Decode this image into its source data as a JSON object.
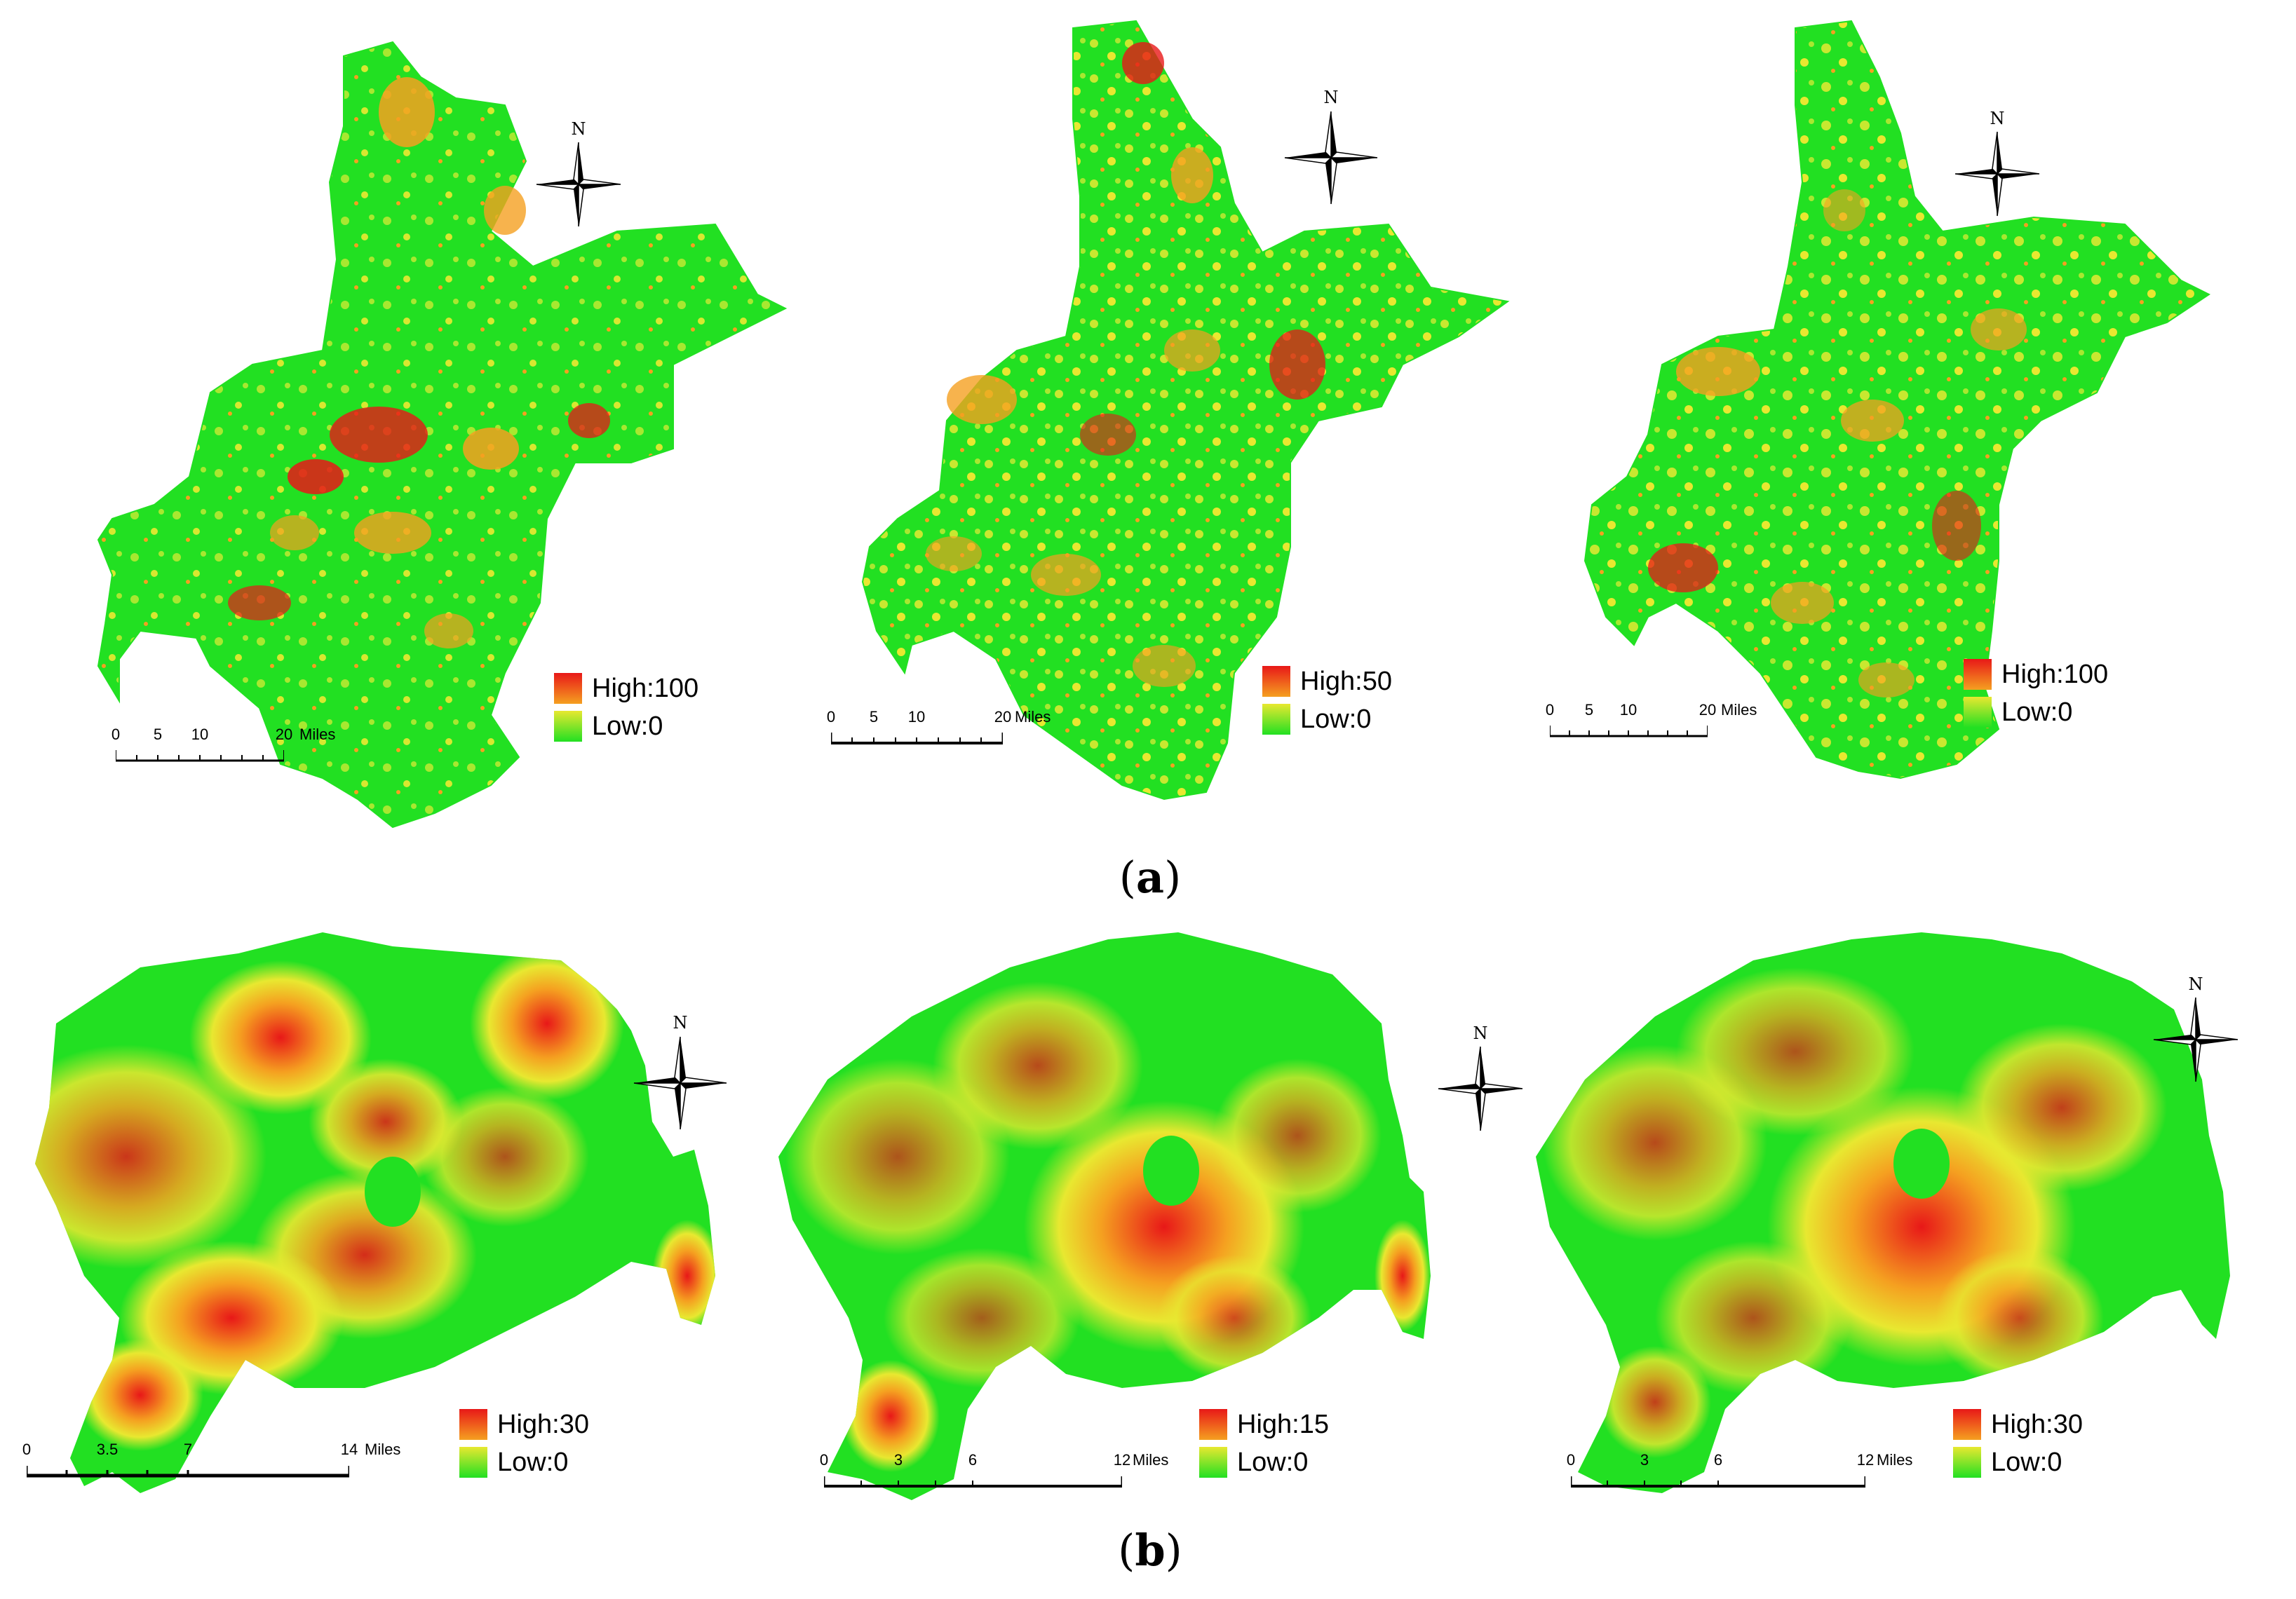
{
  "figure": {
    "rows": [
      {
        "caption_letter": "a",
        "panels": [
          {
            "legend_high": "High:100",
            "legend_low": "Low:0",
            "compass_label": "N",
            "scale_ticks": [
              "0",
              "5",
              "10",
              "20"
            ],
            "scale_unit": "Miles"
          },
          {
            "legend_high": "High:50",
            "legend_low": "Low:0",
            "compass_label": "N",
            "scale_ticks": [
              "0",
              "5",
              "10",
              "20"
            ],
            "scale_unit": "Miles"
          },
          {
            "legend_high": "High:100",
            "legend_low": "Low:0",
            "compass_label": "N",
            "scale_ticks": [
              "0",
              "5",
              "10",
              "20"
            ],
            "scale_unit": "Miles"
          }
        ]
      },
      {
        "caption_letter": "b",
        "panels": [
          {
            "legend_high": "High:30",
            "legend_low": "Low:0",
            "compass_label": "N",
            "scale_ticks": [
              "0",
              "3.5",
              "7",
              "14"
            ],
            "scale_unit": "Miles"
          },
          {
            "legend_high": "High:15",
            "legend_low": "Low:0",
            "compass_label": "N",
            "scale_ticks": [
              "0",
              "3",
              "6",
              "12"
            ],
            "scale_unit": "Miles"
          },
          {
            "legend_high": "High:30",
            "legend_low": "Low:0",
            "compass_label": "N",
            "scale_ticks": [
              "0",
              "3",
              "6",
              "12"
            ],
            "scale_unit": "Miles"
          }
        ]
      }
    ],
    "colors": {
      "low": "#22e022",
      "mid": "#e8e830",
      "orange": "#f5a020",
      "high": "#e81818"
    }
  }
}
